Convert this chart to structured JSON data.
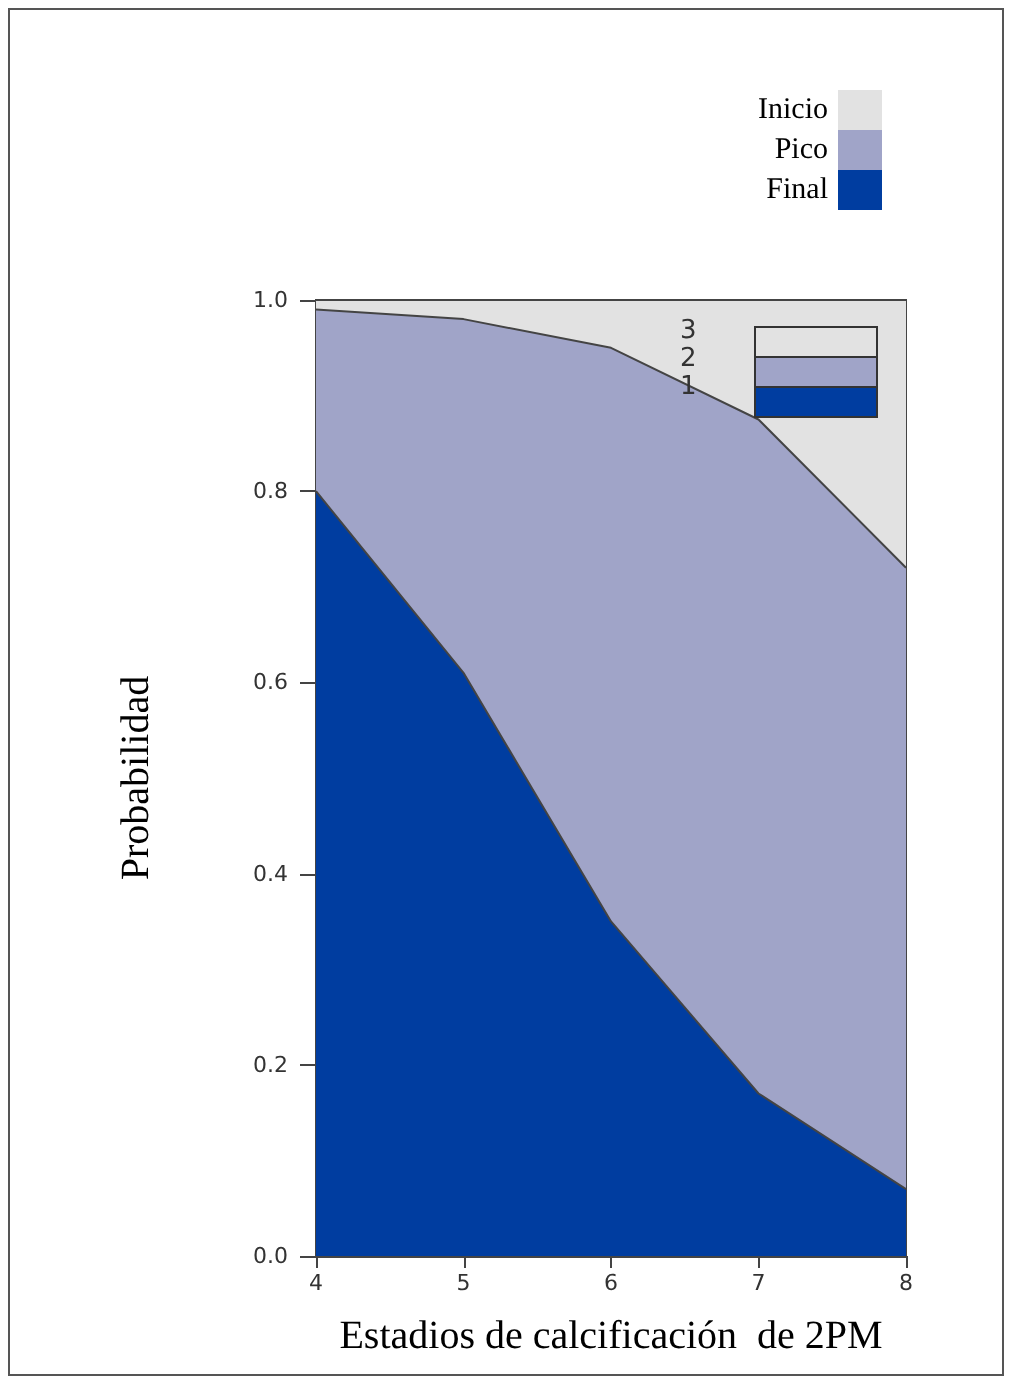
{
  "chart_data": {
    "type": "area",
    "stacked": true,
    "xlabel": "Estadios de calcificación  de 2PM",
    "ylabel": "Probabilidad",
    "x": [
      4,
      5,
      6,
      7,
      8
    ],
    "series": [
      {
        "name": "Final",
        "color": "#003da0",
        "values": [
          0.8,
          0.61,
          0.35,
          0.17,
          0.07
        ]
      },
      {
        "name": "Pico",
        "color": "#a0a4c8",
        "values": [
          0.19,
          0.37,
          0.6,
          0.705,
          0.65
        ]
      },
      {
        "name": "Inicio",
        "color": "#e2e2e2",
        "values": [
          0.01,
          0.02,
          0.05,
          0.125,
          0.28
        ]
      }
    ],
    "xlim": [
      4,
      8
    ],
    "xticks": [
      4,
      5,
      6,
      7,
      8
    ],
    "ylim": [
      0,
      1
    ],
    "yticks": [
      {
        "value": 0,
        "label": "0.0"
      },
      0.2,
      0.4,
      0.6,
      0.8,
      {
        "value": 1,
        "label": "1.0"
      }
    ],
    "annotations": [
      "3",
      "2",
      "1"
    ],
    "legend": "top right",
    "grid": false,
    "marker": "none",
    "line_style": "solid"
  }
}
